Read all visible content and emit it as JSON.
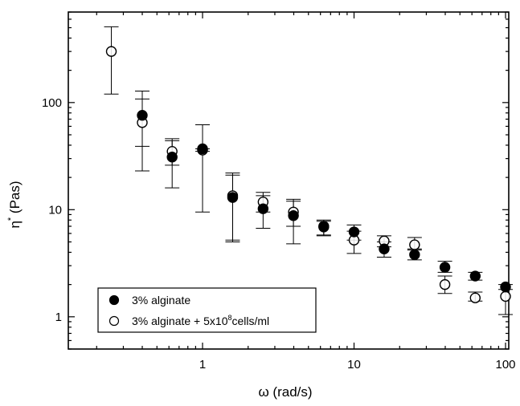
{
  "chart_data": {
    "type": "scatter",
    "xlabel": "ω (rad/s)",
    "ylabel": "η* (Pas)",
    "xscale": "log",
    "yscale": "log",
    "xlim": [
      0.13,
      105
    ],
    "ylim": [
      0.5,
      700
    ],
    "x_ticks": [
      {
        "value": 1,
        "label": "1"
      },
      {
        "value": 10,
        "label": "10"
      },
      {
        "value": 100,
        "label": "100"
      }
    ],
    "y_ticks": [
      {
        "value": 1,
        "label": "1"
      },
      {
        "value": 10,
        "label": "10"
      },
      {
        "value": 100,
        "label": "100"
      }
    ],
    "grid": false,
    "legend_position": "bottom-left",
    "series": [
      {
        "name": "3% alginate",
        "marker": "filled-circle",
        "points": [
          {
            "x": 0.4,
            "y": 76,
            "y_low": 39,
            "y_high": 128
          },
          {
            "x": 0.63,
            "y": 31,
            "y_low": 16,
            "y_high": 46
          },
          {
            "x": 1.0,
            "y": 37,
            "y_low": 9.5,
            "y_high": 62
          },
          {
            "x": 1.58,
            "y": 13,
            "y_low": 5,
            "y_high": 21
          },
          {
            "x": 2.51,
            "y": 10.2,
            "y_low": 6.7,
            "y_high": 13.5
          },
          {
            "x": 3.98,
            "y": 8.8,
            "y_low": 4.8,
            "y_high": 12.5
          },
          {
            "x": 6.31,
            "y": 7.0,
            "y_low": 5.7,
            "y_high": 8.0
          },
          {
            "x": 10.0,
            "y": 6.2,
            "y_low": 5.2,
            "y_high": 7.2
          },
          {
            "x": 15.8,
            "y": 4.3,
            "y_low": 3.6,
            "y_high": 5.0
          },
          {
            "x": 25.1,
            "y": 3.8,
            "y_low": 3.4,
            "y_high": 4.2
          },
          {
            "x": 39.8,
            "y": 2.9,
            "y_low": 2.6,
            "y_high": 3.3
          },
          {
            "x": 63.1,
            "y": 2.4,
            "y_low": 2.2,
            "y_high": 2.6
          },
          {
            "x": 100,
            "y": 1.9,
            "y_low": 1.05,
            "y_high": 2.0
          }
        ]
      },
      {
        "name": "3% alginate + 5x10⁸cells/ml",
        "marker": "open-circle",
        "points": [
          {
            "x": 0.25,
            "y": 300,
            "y_low": 120,
            "y_high": 510
          },
          {
            "x": 0.4,
            "y": 65,
            "y_low": 23,
            "y_high": 108
          },
          {
            "x": 0.63,
            "y": 35,
            "y_low": 26,
            "y_high": 44
          },
          {
            "x": 1.0,
            "y": 36,
            "y_low": 35,
            "y_high": 37
          },
          {
            "x": 1.58,
            "y": 13.5,
            "y_low": 5.2,
            "y_high": 22
          },
          {
            "x": 2.51,
            "y": 11.8,
            "y_low": 9.5,
            "y_high": 14.5
          },
          {
            "x": 3.98,
            "y": 9.5,
            "y_low": 7.0,
            "y_high": 12.0
          },
          {
            "x": 6.31,
            "y": 6.9,
            "y_low": 5.8,
            "y_high": 7.8
          },
          {
            "x": 10.0,
            "y": 5.2,
            "y_low": 3.9,
            "y_high": 6.3
          },
          {
            "x": 15.8,
            "y": 5.1,
            "y_low": 4.5,
            "y_high": 5.7
          },
          {
            "x": 25.1,
            "y": 4.7,
            "y_low": 4.3,
            "y_high": 5.5
          },
          {
            "x": 39.8,
            "y": 2.0,
            "y_low": 1.65,
            "y_high": 2.4
          },
          {
            "x": 63.1,
            "y": 1.5,
            "y_low": 1.4,
            "y_high": 1.7
          },
          {
            "x": 100,
            "y": 1.55,
            "y_low": 1.05,
            "y_high": 1.8
          }
        ]
      }
    ],
    "legend": {
      "entries": [
        {
          "marker": "filled-circle",
          "label": "3% alginate"
        },
        {
          "marker": "open-circle",
          "label_prefix": "3% alginate + 5x10",
          "label_sup": "8",
          "label_suffix": "cells/ml"
        }
      ]
    }
  }
}
